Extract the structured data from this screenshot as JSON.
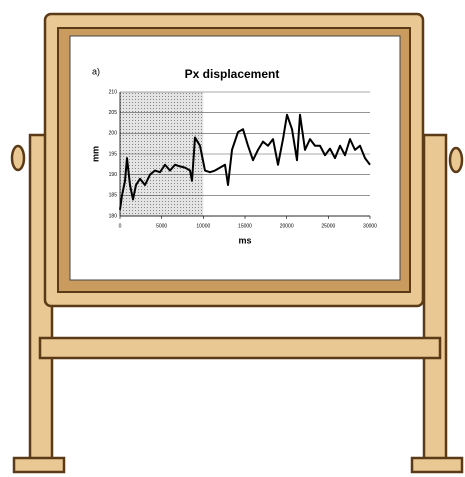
{
  "chart_data": {
    "type": "line",
    "panel_label": "a)",
    "title": "Px displacement",
    "x_label": "ms",
    "y_label": "mm",
    "x": [
      0,
      240,
      600,
      840,
      1200,
      1560,
      1920,
      2400,
      3000,
      3600,
      4200,
      4800,
      5400,
      6000,
      6600,
      7200,
      7800,
      8400,
      8640,
      9000,
      9600,
      10200,
      10800,
      11400,
      12000,
      12600,
      12960,
      13440,
      14160,
      14760,
      15360,
      15960,
      16560,
      17160,
      17760,
      18360,
      18960,
      19560,
      20040,
      20640,
      21240,
      21600,
      22200,
      22800,
      23400,
      24000,
      24600,
      25200,
      25800,
      26400,
      27000,
      27600,
      28200,
      28800,
      29400,
      30000
    ],
    "series": [
      {
        "color": "#000000",
        "values": [
          181.5,
          185,
          188.5,
          194,
          187.5,
          184,
          187.5,
          189,
          187.5,
          190,
          191,
          190.6,
          192.4,
          191,
          192.4,
          192,
          191.7,
          191,
          188.5,
          199,
          197,
          191,
          190.6,
          191,
          191.7,
          192.4,
          187.5,
          196,
          200.3,
          201,
          197,
          193.5,
          196,
          198,
          197,
          198.6,
          192.4,
          198.6,
          204.5,
          201,
          193.5,
          204.5,
          196,
          198.6,
          197,
          197,
          194.7,
          196.3,
          194,
          197,
          194.7,
          198.6,
          196,
          197,
          194,
          192.4
        ]
      }
    ],
    "shaded_x": [
      0,
      10000
    ],
    "xlim": [
      0,
      30000
    ],
    "xticks": [
      0,
      5000,
      10000,
      15000,
      20000,
      25000,
      30000
    ],
    "ylim": [
      180,
      210
    ],
    "yticks": [
      180,
      185,
      190,
      195,
      200,
      205,
      210
    ],
    "grid": true
  }
}
